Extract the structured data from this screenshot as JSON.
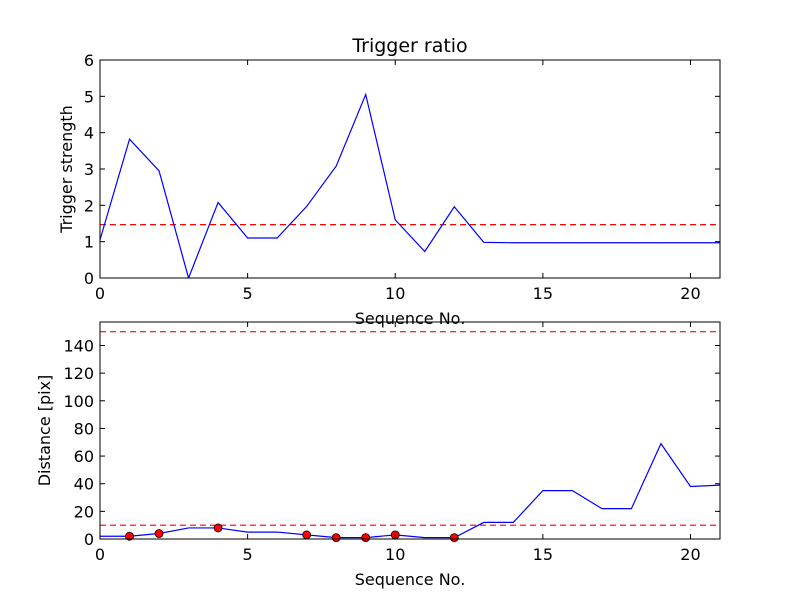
{
  "chart_data": [
    {
      "type": "line",
      "title": "Trigger ratio",
      "xlabel": "Sequence No.",
      "ylabel": "Trigger strength",
      "xlim": [
        0,
        21
      ],
      "ylim": [
        0,
        6
      ],
      "xticks": [
        0,
        5,
        10,
        15,
        20
      ],
      "yticks": [
        0,
        1,
        2,
        3,
        4,
        5,
        6
      ],
      "grid": false,
      "colors": {
        "series": "#0000ff",
        "reference": "#ff0000"
      },
      "series": [
        {
          "x": [
            0,
            1,
            2,
            3,
            4,
            5,
            6,
            7,
            8,
            9,
            10,
            11,
            12,
            13,
            14,
            15,
            16,
            17,
            18,
            19,
            20,
            21
          ],
          "values": [
            1.05,
            3.82,
            2.95,
            0.0,
            2.08,
            1.1,
            1.1,
            1.97,
            3.08,
            5.05,
            1.6,
            0.73,
            1.96,
            0.98,
            0.97,
            0.97,
            0.97,
            0.97,
            0.97,
            0.97,
            0.97,
            0.97
          ]
        }
      ],
      "hlines": [
        1.47
      ]
    },
    {
      "type": "line",
      "title": "",
      "xlabel": "Sequence No.",
      "ylabel": "Distance [pix]",
      "xlim": [
        0,
        21
      ],
      "ylim": [
        0,
        157
      ],
      "xticks": [
        0,
        5,
        10,
        15,
        20
      ],
      "yticks": [
        0,
        20,
        40,
        60,
        80,
        100,
        120,
        140
      ],
      "grid": false,
      "colors": {
        "series": "#0000ff",
        "reference": "#ff0000",
        "markers": "#ff0000"
      },
      "series": [
        {
          "x": [
            0,
            1,
            2,
            3,
            4,
            5,
            6,
            7,
            8,
            9,
            10,
            11,
            12,
            13,
            14,
            15,
            16,
            17,
            18,
            19,
            20,
            21
          ],
          "values": [
            2,
            2,
            4,
            8,
            8,
            5,
            5,
            3,
            1,
            1,
            3,
            1,
            1,
            12,
            12,
            35,
            35,
            22,
            22,
            69,
            38,
            39
          ]
        }
      ],
      "markers": {
        "x": [
          1,
          2,
          4,
          7,
          8,
          9,
          10,
          12
        ],
        "values": [
          2,
          4,
          8,
          3,
          1,
          1,
          3,
          1
        ]
      },
      "hlines": [
        150,
        10
      ]
    }
  ]
}
